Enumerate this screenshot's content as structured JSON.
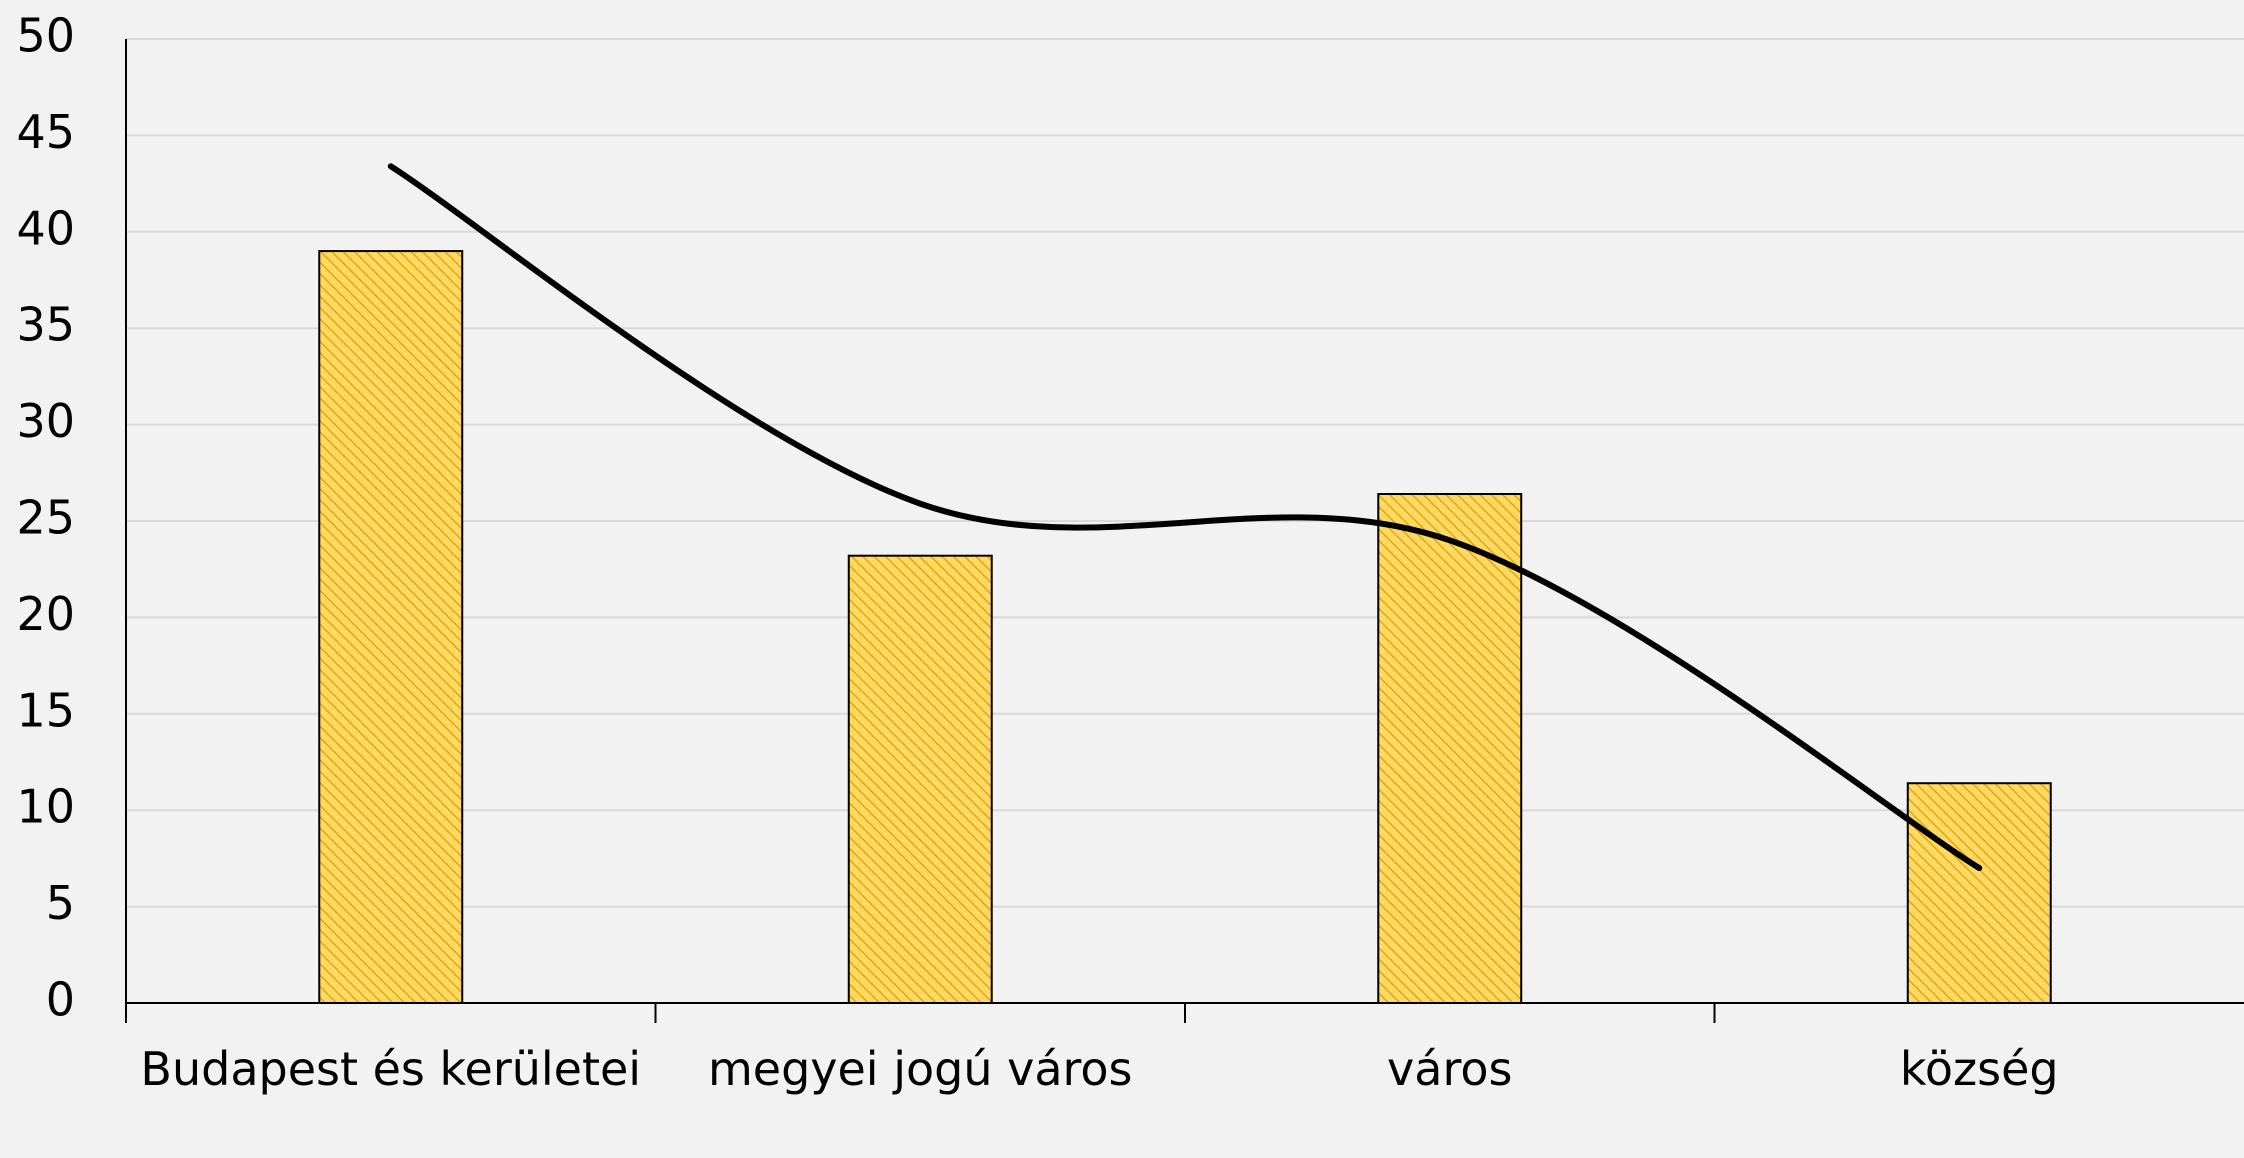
{
  "chart_data": {
    "type": "bar",
    "categories": [
      "Budapest és kerületei",
      "megyei jogú város",
      "város",
      "község"
    ],
    "series": [
      {
        "type": "bar",
        "color": "#ffd966",
        "values": [
          39,
          23.2,
          26.4,
          11.4
        ]
      },
      {
        "type": "line",
        "color": "#000000",
        "values": [
          43.4,
          25.9,
          24.0,
          7.0
        ]
      }
    ],
    "ylim": [
      0,
      50
    ],
    "yticks": [
      0,
      5,
      10,
      15,
      20,
      25,
      30,
      35,
      40,
      45,
      50
    ],
    "grid": true
  }
}
